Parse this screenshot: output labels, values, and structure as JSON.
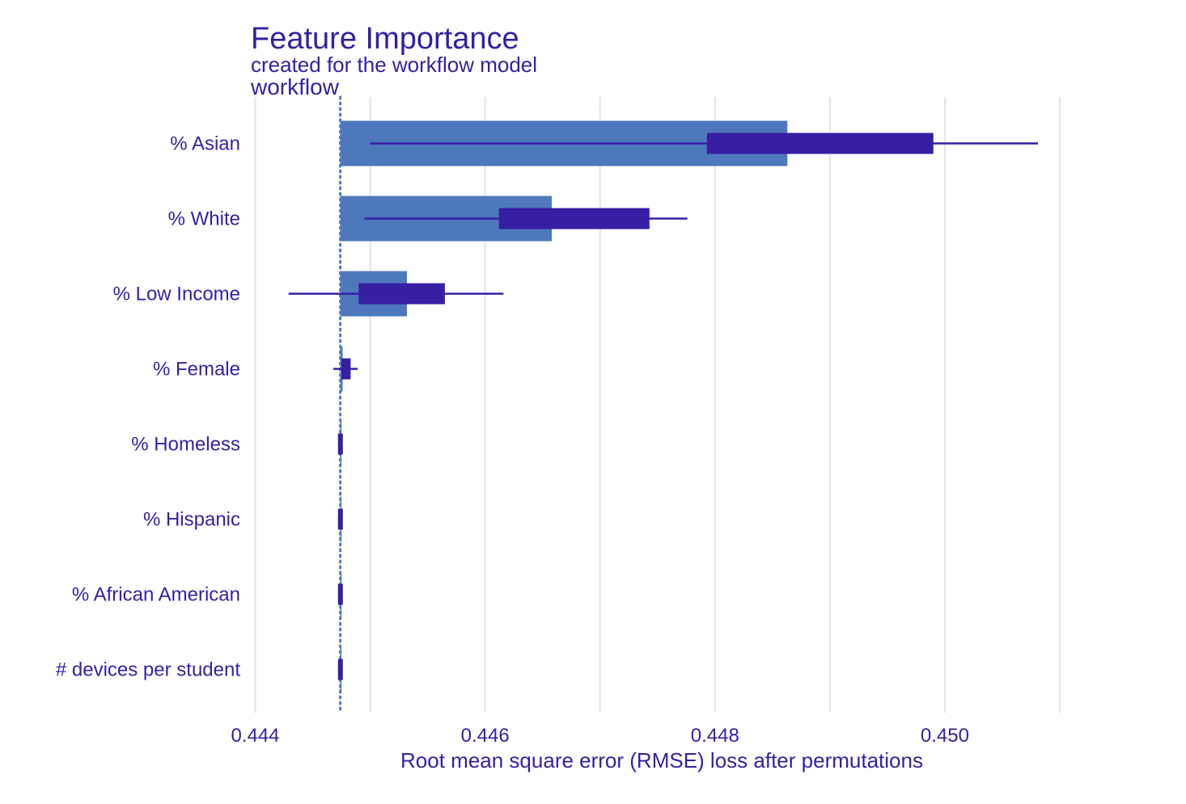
{
  "chart_data": {
    "type": "bar",
    "title": "Feature Importance",
    "subtitle": "created for the workflow model",
    "facet_label": "workflow",
    "xlabel": "Root mean square error (RMSE) loss after permutations",
    "ylabel": "",
    "xlim": [
      0.4433,
      0.4514
    ],
    "x_ticks": [
      0.444,
      0.446,
      0.448,
      0.45
    ],
    "x_tick_labels": [
      "0.444",
      "0.446",
      "0.448",
      "0.450"
    ],
    "grid": "vertical",
    "baseline": 0.44474,
    "categories": [
      "% Asian",
      "% White",
      "% Low Income",
      "% Female",
      "% Homeless",
      "% Hispanic",
      "% African American",
      "# devices per student"
    ],
    "series": [
      {
        "values": [
          0.44863,
          0.44658,
          0.44532,
          0.44476,
          0.44474,
          0.44474,
          0.44474,
          0.44474
        ]
      }
    ],
    "boxplots": [
      {
        "category": "% Asian",
        "min": 0.445,
        "q1": 0.44793,
        "q3": 0.4499,
        "max": 0.45081
      },
      {
        "category": "% White",
        "min": 0.44495,
        "q1": 0.44612,
        "q3": 0.44743,
        "max": 0.44776
      },
      {
        "category": "% Low Income",
        "min": 0.44429,
        "q1": 0.4449,
        "q3": 0.44565,
        "max": 0.44616
      },
      {
        "category": "% Female",
        "min": 0.44468,
        "q1": 0.44475,
        "q3": 0.44483,
        "max": 0.44489
      },
      {
        "category": "% Homeless",
        "min": 0.44472,
        "q1": 0.44472,
        "q3": 0.44476,
        "max": 0.44476
      },
      {
        "category": "% Hispanic",
        "min": 0.44472,
        "q1": 0.44472,
        "q3": 0.44476,
        "max": 0.44476
      },
      {
        "category": "% African American",
        "min": 0.44472,
        "q1": 0.44472,
        "q3": 0.44476,
        "max": 0.44476
      },
      {
        "category": "# devices per student",
        "min": 0.44472,
        "q1": 0.44472,
        "q3": 0.44476,
        "max": 0.44476
      }
    ],
    "colors": {
      "bar": "#4e78bc",
      "box": "#371ea3",
      "text": "#371ea3",
      "grid": "#e3e3e3",
      "baseline": "#4e78bc"
    }
  }
}
